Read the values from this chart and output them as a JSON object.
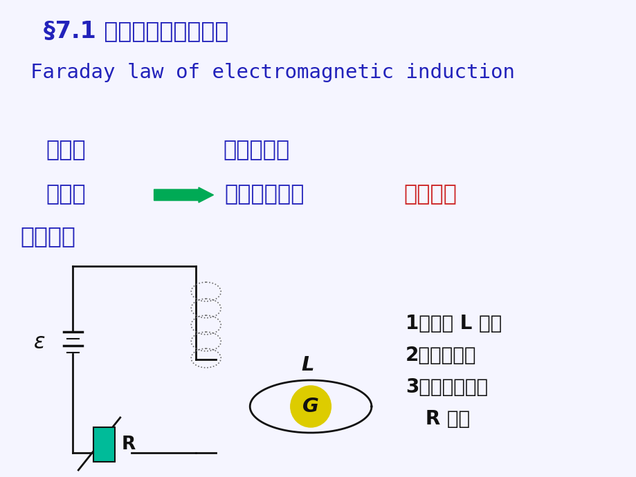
{
  "bg_color": "#f5f5ff",
  "title_cn": "§7.1 法拉第电磁感应定律",
  "title_en": "Faraday law of electromagnetic induction",
  "title_cn_color": "#2222bb",
  "title_en_color": "#2222bb",
  "line1_left": "奥斯特",
  "line1_right": "电流磁效应",
  "line2_left": "对称性",
  "line2_right": "磁的电效应？",
  "line2_red": "历经十年",
  "line3": "一．现象",
  "blue_color": "#2222bb",
  "red_color": "#cc2222",
  "green_color": "#00aa55",
  "list_items": [
    "1）回路 L 运动",
    "2）场源运动",
    "3）都静止，但",
    "   R 变化"
  ],
  "list_color": "#111111"
}
